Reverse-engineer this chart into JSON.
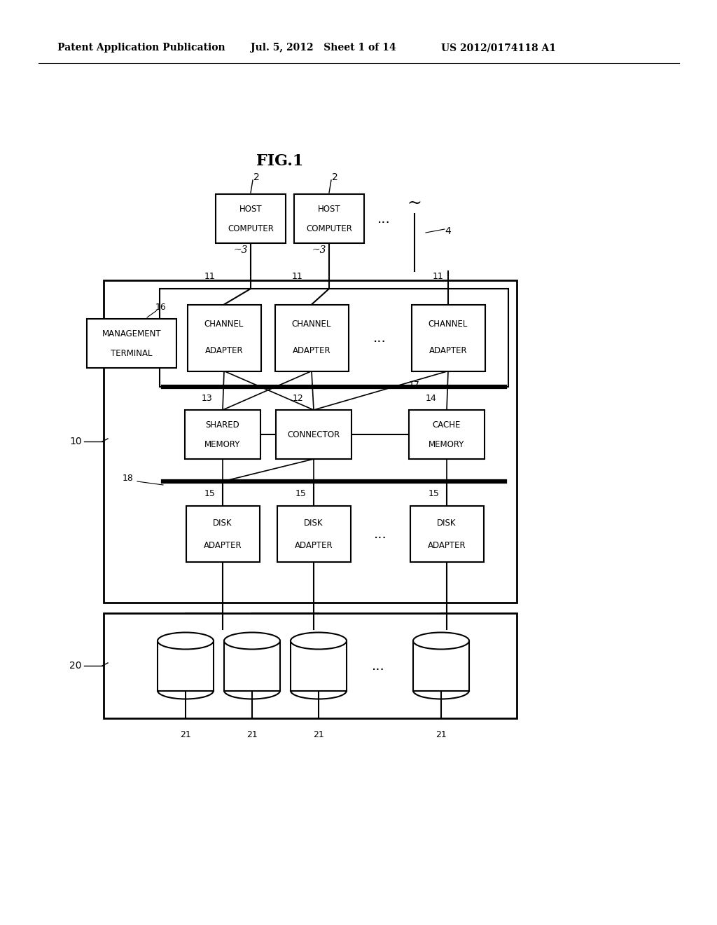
{
  "title": "FIG.1",
  "header_left": "Patent Application Publication",
  "header_mid": "Jul. 5, 2012   Sheet 1 of 14",
  "header_right": "US 2012/0174118 A1",
  "bg_color": "#ffffff",
  "line_color": "#000000",
  "fig_width": 10.24,
  "fig_height": 13.2,
  "dpi": 100
}
